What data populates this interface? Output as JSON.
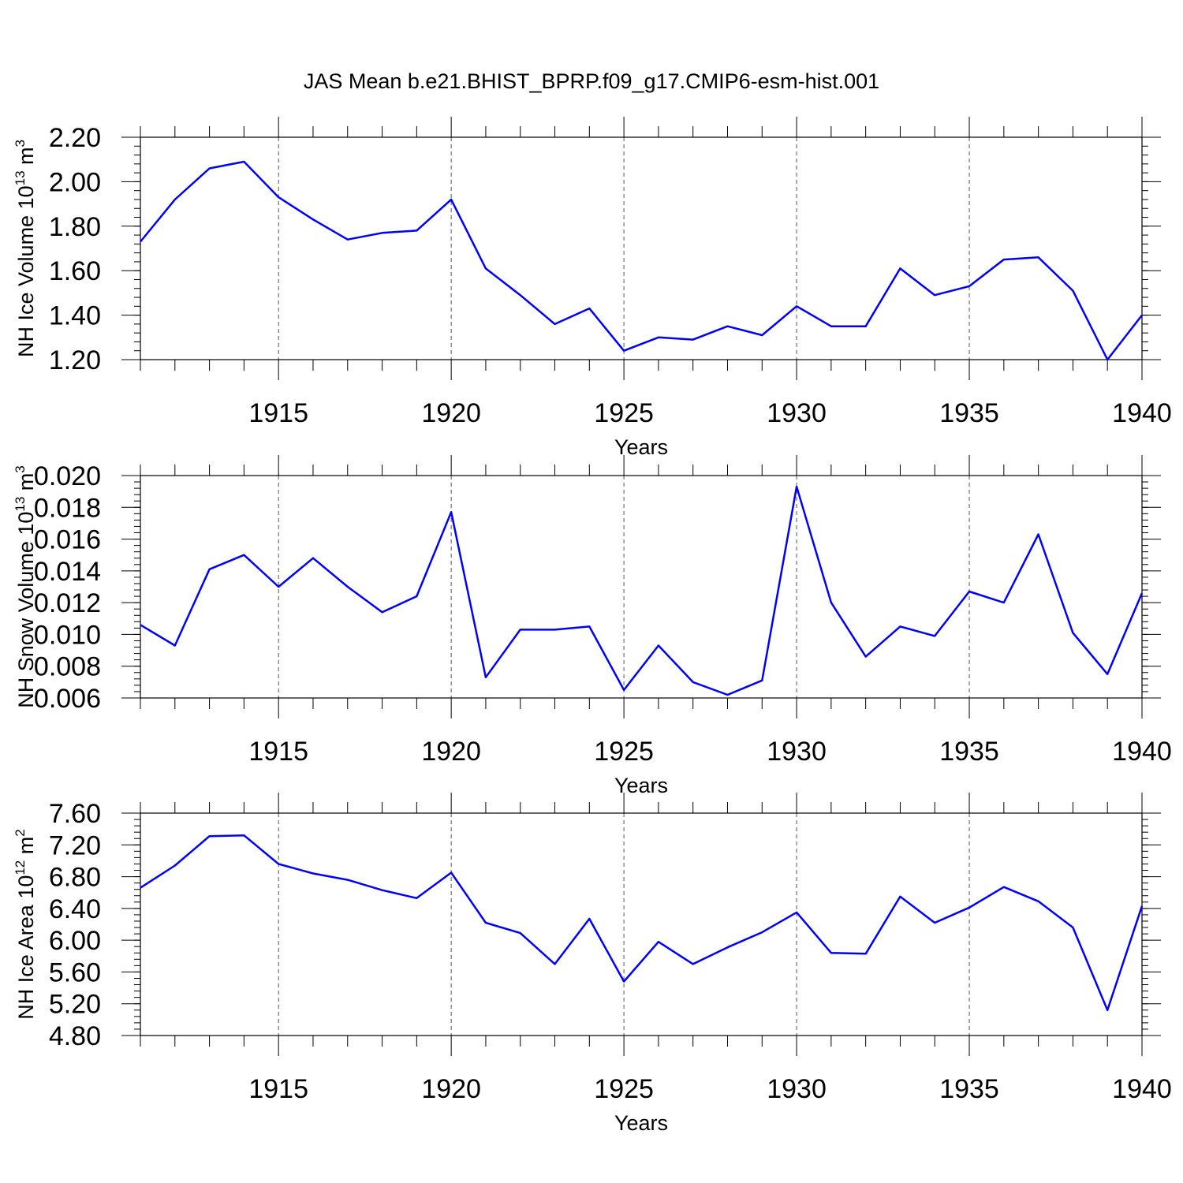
{
  "figure": {
    "title": "JAS Mean b.e21.BHIST_BPRP.f09_g17.CMIP6-esm-hist.001",
    "line_color": "#0000ff"
  },
  "chart_data": [
    {
      "type": "line",
      "ylabel_main": "NH Ice Volume 10",
      "ylabel_exp": "13",
      "ylabel_unit": " m",
      "ylabel_unit_exp": "3",
      "xlabel": "Years",
      "xlim": [
        1911,
        1940
      ],
      "ylim": [
        1.2,
        2.2
      ],
      "yticks": [
        1.2,
        1.4,
        1.6,
        1.8,
        2.0,
        2.2
      ],
      "ytick_labels": [
        "1.20",
        "1.40",
        "1.60",
        "1.80",
        "2.00",
        "2.20"
      ],
      "y_minor_step": 0.04,
      "xticks": [
        1915,
        1920,
        1925,
        1930,
        1935,
        1940
      ],
      "xtick_labels": [
        "1915",
        "1920",
        "1925",
        "1930",
        "1935",
        "1940"
      ],
      "grid": "vertical dashed at labeled years",
      "series": [
        {
          "x": [
            1911,
            1912,
            1913,
            1914,
            1915,
            1916,
            1917,
            1918,
            1919,
            1920,
            1921,
            1922,
            1923,
            1924,
            1925,
            1926,
            1927,
            1928,
            1929,
            1930,
            1931,
            1932,
            1933,
            1934,
            1935,
            1936,
            1937,
            1938,
            1939,
            1940
          ],
          "values": [
            1.73,
            1.92,
            2.06,
            2.09,
            1.93,
            1.83,
            1.74,
            1.77,
            1.78,
            1.92,
            1.61,
            1.49,
            1.36,
            1.43,
            1.24,
            1.3,
            1.29,
            1.35,
            1.31,
            1.44,
            1.35,
            1.35,
            1.61,
            1.49,
            1.53,
            1.65,
            1.66,
            1.51,
            1.2,
            1.4
          ]
        }
      ]
    },
    {
      "type": "line",
      "ylabel_main": "NH Snow Volume 10",
      "ylabel_exp": "13",
      "ylabel_unit": " m",
      "ylabel_unit_exp": "3",
      "xlabel": "Years",
      "xlim": [
        1911,
        1940
      ],
      "ylim": [
        0.006,
        0.02
      ],
      "yticks": [
        0.006,
        0.008,
        0.01,
        0.012,
        0.014,
        0.016,
        0.018,
        0.02
      ],
      "ytick_labels": [
        "0.006",
        "0.008",
        "0.010",
        "0.012",
        "0.014",
        "0.016",
        "0.018",
        "0.020"
      ],
      "y_minor_step": 0.0004,
      "xticks": [
        1915,
        1920,
        1925,
        1930,
        1935,
        1940
      ],
      "xtick_labels": [
        "1915",
        "1920",
        "1925",
        "1930",
        "1935",
        "1940"
      ],
      "grid": "vertical dashed at labeled years",
      "series": [
        {
          "x": [
            1911,
            1912,
            1913,
            1914,
            1915,
            1916,
            1917,
            1918,
            1919,
            1920,
            1921,
            1922,
            1923,
            1924,
            1925,
            1926,
            1927,
            1928,
            1929,
            1930,
            1931,
            1932,
            1933,
            1934,
            1935,
            1936,
            1937,
            1938,
            1939,
            1940
          ],
          "values": [
            0.0106,
            0.0093,
            0.0141,
            0.015,
            0.013,
            0.0148,
            0.013,
            0.0114,
            0.0124,
            0.0177,
            0.0073,
            0.0103,
            0.0103,
            0.0105,
            0.0065,
            0.0093,
            0.007,
            0.0062,
            0.0071,
            0.0193,
            0.012,
            0.0086,
            0.0105,
            0.0099,
            0.0127,
            0.012,
            0.0163,
            0.0101,
            0.0075,
            0.0126
          ]
        }
      ]
    },
    {
      "type": "line",
      "ylabel_main": "NH Ice Area 10",
      "ylabel_exp": "12",
      "ylabel_unit": " m",
      "ylabel_unit_exp": "2",
      "xlabel": "Years",
      "xlim": [
        1911,
        1940
      ],
      "ylim": [
        4.8,
        7.6
      ],
      "yticks": [
        4.8,
        5.2,
        5.6,
        6.0,
        6.4,
        6.8,
        7.2,
        7.6
      ],
      "ytick_labels": [
        "4.80",
        "5.20",
        "5.60",
        "6.00",
        "6.40",
        "6.80",
        "7.20",
        "7.60"
      ],
      "y_minor_step": 0.08,
      "xticks": [
        1915,
        1920,
        1925,
        1930,
        1935,
        1940
      ],
      "xtick_labels": [
        "1915",
        "1920",
        "1925",
        "1930",
        "1935",
        "1940"
      ],
      "grid": "vertical dashed at labeled years",
      "series": [
        {
          "x": [
            1911,
            1912,
            1913,
            1914,
            1915,
            1916,
            1917,
            1918,
            1919,
            1920,
            1921,
            1922,
            1923,
            1924,
            1925,
            1926,
            1927,
            1928,
            1929,
            1930,
            1931,
            1932,
            1933,
            1934,
            1935,
            1936,
            1937,
            1938,
            1939,
            1940
          ],
          "values": [
            6.66,
            6.94,
            7.31,
            7.32,
            6.96,
            6.84,
            6.76,
            6.63,
            6.53,
            6.85,
            6.22,
            6.09,
            5.7,
            6.27,
            5.48,
            5.98,
            5.7,
            5.91,
            6.1,
            6.35,
            5.84,
            5.83,
            6.55,
            6.22,
            6.41,
            6.67,
            6.49,
            6.16,
            5.12,
            6.43
          ]
        }
      ]
    }
  ]
}
